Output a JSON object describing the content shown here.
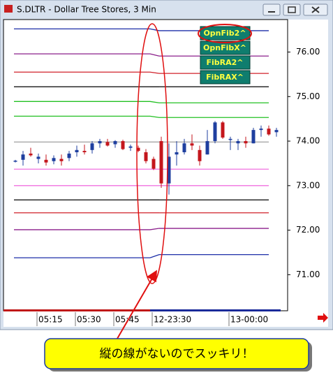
{
  "window": {
    "title": "S.DLTR - Dollar Tree Stores, 3 Min"
  },
  "chart_data": {
    "type": "candlestick",
    "categories": [
      null,
      null,
      null,
      "05:15",
      null,
      null,
      null,
      null,
      "05:30",
      null,
      null,
      null,
      null,
      "05:45",
      null,
      null,
      null,
      null,
      "12-23:30",
      null,
      null,
      null,
      null,
      null,
      null,
      null,
      null,
      null,
      "13-00:00",
      null,
      null,
      null,
      null,
      null,
      null
    ],
    "open": [
      73.55,
      73.58,
      73.72,
      73.6,
      73.58,
      73.55,
      73.6,
      73.62,
      73.75,
      73.78,
      73.8,
      73.95,
      73.98,
      73.93,
      74.0,
      73.85,
      73.85,
      73.75,
      73.6,
      74.0,
      73.05,
      73.7,
      73.75,
      73.95,
      73.8,
      73.7,
      74.0,
      74.42,
      74.05,
      73.95,
      74.0,
      73.95,
      74.25,
      74.28,
      74.2
    ],
    "high": [
      73.58,
      73.78,
      73.85,
      73.72,
      73.7,
      73.68,
      73.7,
      73.78,
      73.9,
      73.92,
      74.0,
      74.05,
      74.05,
      74.02,
      74.03,
      73.92,
      73.9,
      73.82,
      73.65,
      74.1,
      73.95,
      74.0,
      74.05,
      74.15,
      73.9,
      74.25,
      74.45,
      74.45,
      74.1,
      74.05,
      74.1,
      74.3,
      74.35,
      74.35,
      74.3
    ],
    "low": [
      73.52,
      73.45,
      73.65,
      73.5,
      73.45,
      73.48,
      73.45,
      73.55,
      73.65,
      73.7,
      73.72,
      73.85,
      73.88,
      73.85,
      73.8,
      73.78,
      73.75,
      73.5,
      73.35,
      72.95,
      72.8,
      73.45,
      73.7,
      73.8,
      73.45,
      73.7,
      73.95,
      74.05,
      73.8,
      73.8,
      73.85,
      73.95,
      74.1,
      74.12,
      74.1
    ],
    "close": [
      73.56,
      73.7,
      73.68,
      73.65,
      73.52,
      73.62,
      73.55,
      73.72,
      73.8,
      73.75,
      73.95,
      74.0,
      73.9,
      74.0,
      73.82,
      73.88,
      73.78,
      73.55,
      73.38,
      73.05,
      73.65,
      73.75,
      73.95,
      73.9,
      73.55,
      74.0,
      74.42,
      74.08,
      74.05,
      74.0,
      73.95,
      74.25,
      74.28,
      74.15,
      74.25
    ],
    "up_color": "#1f3f9f",
    "down_color": "#c4161c",
    "levels": [
      {
        "color": "#1c2ea8",
        "values": [
          76.52,
          76.48
        ]
      },
      {
        "color": "#8b1f8b",
        "values": [
          75.96,
          75.91
        ]
      },
      {
        "color": "#d0202a",
        "values": [
          75.55,
          75.52
        ]
      },
      {
        "color": "#000000",
        "values": [
          75.22,
          75.22
        ]
      },
      {
        "color": "#22c022",
        "values": [
          74.89,
          74.86
        ]
      },
      {
        "color": "#22c022",
        "values": [
          74.56,
          74.53
        ]
      },
      {
        "color": "#a0a0a0",
        "values": [
          73.98,
          73.98
        ]
      },
      {
        "color": "#f070e0",
        "values": [
          73.37,
          73.37
        ]
      },
      {
        "color": "#f070e0",
        "values": [
          73.0,
          73.0
        ]
      },
      {
        "color": "#000000",
        "values": [
          72.68,
          72.68
        ]
      },
      {
        "color": "#d0202a",
        "values": [
          72.39,
          72.39
        ]
      },
      {
        "color": "#8b1f8b",
        "values": [
          72.01,
          72.04
        ]
      },
      {
        "color": "#1c2ea8",
        "values": [
          71.38,
          71.45
        ]
      }
    ],
    "ylim": [
      70.19,
      76.73
    ],
    "yticks": [
      {
        "value": 71,
        "label": "71.00"
      },
      {
        "value": 72,
        "label": "72.00"
      },
      {
        "value": 73,
        "label": "73.00"
      },
      {
        "value": 74,
        "label": "74.00"
      },
      {
        "value": 75,
        "label": "75.00"
      },
      {
        "value": 76,
        "label": "76.00"
      }
    ]
  },
  "buttons": [
    "OpnFib2^",
    "OpnFibX^",
    "FibRA2^",
    "FibRAX^"
  ],
  "callout": "縦の線がないのでスッキリ！"
}
